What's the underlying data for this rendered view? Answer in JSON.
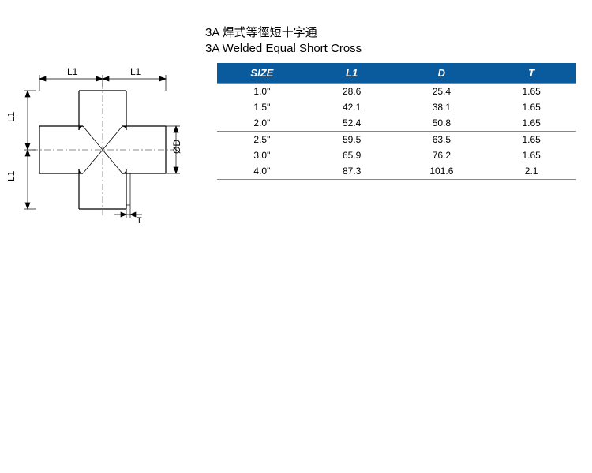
{
  "title": {
    "zh": "3A 焊式等徑短十字通",
    "en": "3A Welded Equal Short Cross"
  },
  "diagram": {
    "labels": {
      "l1": "L1",
      "d": "ØD",
      "t": "T"
    },
    "stroke": "#000000",
    "dash_color": "#666666"
  },
  "table": {
    "header_bg": "#0a5a9e",
    "header_fg": "#ffffff",
    "columns": [
      "SIZE",
      "L1",
      "D",
      "T"
    ],
    "groups": [
      {
        "rows": [
          [
            "1.0\"",
            "28.6",
            "25.4",
            "1.65"
          ],
          [
            "1.5\"",
            "42.1",
            "38.1",
            "1.65"
          ],
          [
            "2.0\"",
            "52.4",
            "50.8",
            "1.65"
          ]
        ]
      },
      {
        "rows": [
          [
            "2.5\"",
            "59.5",
            "63.5",
            "1.65"
          ],
          [
            "3.0\"",
            "65.9",
            "76.2",
            "1.65"
          ],
          [
            "4.0\"",
            "87.3",
            "101.6",
            "2.1"
          ]
        ]
      }
    ]
  }
}
